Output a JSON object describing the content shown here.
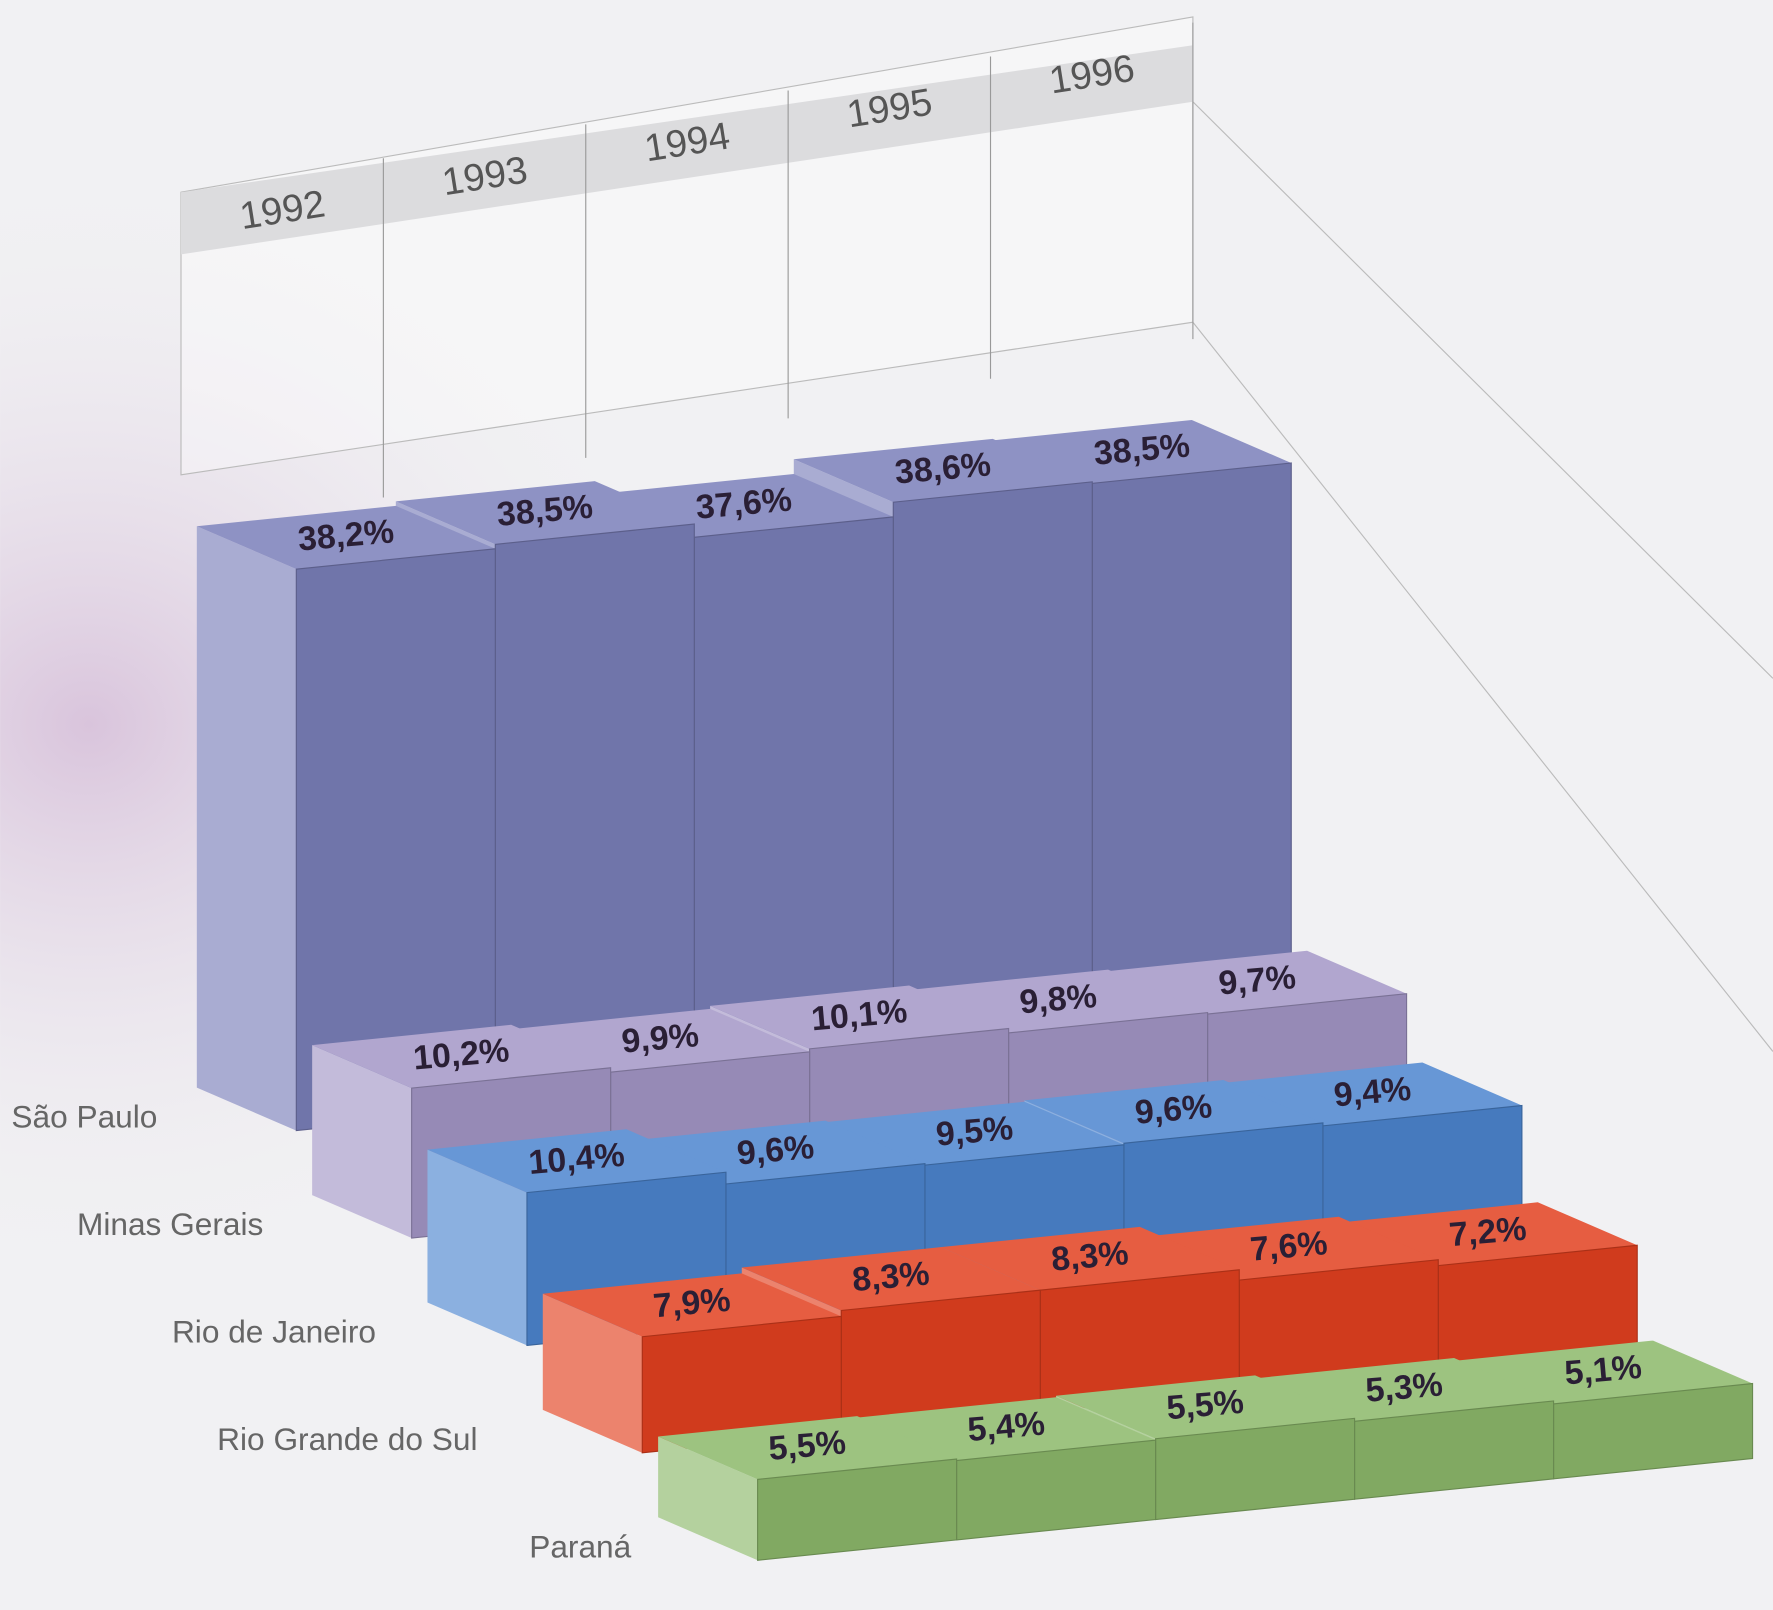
{
  "chart_data": {
    "type": "bar3d",
    "categories": [
      "1992",
      "1993",
      "1994",
      "1995",
      "1996"
    ],
    "series": [
      {
        "name": "São Paulo",
        "color": "#7a7fb9",
        "values": [
          38.2,
          38.5,
          37.6,
          38.6,
          38.5
        ],
        "value_labels": [
          "38,2%",
          "38,5%",
          "37,6%",
          "38,6%",
          "38,5%"
        ]
      },
      {
        "name": "Minas Gerais",
        "color": "#a396c6",
        "values": [
          10.2,
          9.9,
          10.1,
          9.8,
          9.7
        ],
        "value_labels": [
          "10,2%",
          "9,9%",
          "10,1%",
          "9,8%",
          "9,7%"
        ]
      },
      {
        "name": "Rio de Janeiro",
        "color": "#4c85cf",
        "values": [
          10.4,
          9.6,
          9.5,
          9.6,
          9.4
        ],
        "value_labels": [
          "10,4%",
          "9,6%",
          "9,5%",
          "9,6%",
          "9,4%"
        ]
      },
      {
        "name": "Rio Grande do Sul",
        "color": "#e2401f",
        "values": [
          7.9,
          8.3,
          8.3,
          7.6,
          7.2
        ],
        "value_labels": [
          "7,9%",
          "8,3%",
          "8,3%",
          "7,6%",
          "7,2%"
        ]
      },
      {
        "name": "Paraná",
        "color": "#8cb86a",
        "values": [
          5.5,
          5.4,
          5.5,
          5.3,
          5.1
        ],
        "value_labels": [
          "5,5%",
          "5,4%",
          "5,5%",
          "5,3%",
          "5,1%"
        ]
      }
    ]
  }
}
